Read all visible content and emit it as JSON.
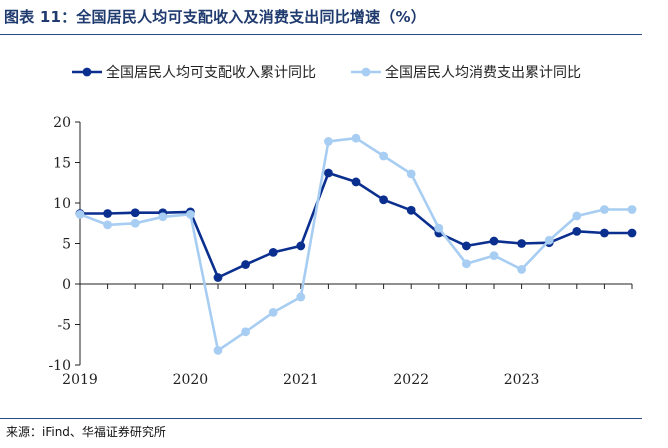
{
  "figure_title": "图表 11：全国居民人均可支配收入及消费支出同比增速（%）",
  "source": "来源：iFind、华福证券研究所",
  "colors": {
    "accent": "#1f3a6e",
    "series_dark": "#0a2f8f",
    "series_light": "#a7cdf2",
    "axis": "#222222"
  },
  "chart_data": {
    "type": "line",
    "title": "",
    "xlabel": "",
    "ylabel": "",
    "ylim": [
      -10,
      20
    ],
    "yticks": [
      -10,
      -5,
      0,
      5,
      10,
      15,
      20
    ],
    "xlim": [
      2019.0,
      2024.0
    ],
    "xticks": [
      2019,
      2020,
      2021,
      2022,
      2023
    ],
    "legend_position": "top",
    "grid": false,
    "series": [
      {
        "name": "全国居民人均可支配收入累计同比",
        "color": "#0a2f8f",
        "x": [
          2019.0,
          2019.25,
          2019.5,
          2019.75,
          2020.0,
          2020.25,
          2020.5,
          2020.75,
          2021.0,
          2021.25,
          2021.5,
          2021.75,
          2022.0,
          2022.25,
          2022.5,
          2022.75,
          2023.0,
          2023.25,
          2023.5,
          2023.75,
          2024.0
        ],
        "values": [
          8.7,
          8.7,
          8.8,
          8.8,
          8.9,
          0.8,
          2.4,
          3.9,
          4.7,
          13.7,
          12.6,
          10.4,
          9.1,
          6.3,
          4.7,
          5.3,
          5.0,
          5.1,
          6.5,
          6.3,
          6.3
        ]
      },
      {
        "name": "全国居民人均消费支出累计同比",
        "color": "#a7cdf2",
        "x": [
          2019.0,
          2019.25,
          2019.5,
          2019.75,
          2020.0,
          2020.25,
          2020.5,
          2020.75,
          2021.0,
          2021.25,
          2021.5,
          2021.75,
          2022.0,
          2022.25,
          2022.5,
          2022.75,
          2023.0,
          2023.25,
          2023.5,
          2023.75,
          2024.0
        ],
        "values": [
          8.6,
          7.3,
          7.5,
          8.3,
          8.6,
          -8.2,
          -5.9,
          -3.5,
          -1.6,
          17.6,
          18.0,
          15.8,
          13.6,
          6.9,
          2.5,
          3.5,
          1.8,
          5.4,
          8.4,
          9.2,
          9.2
        ]
      }
    ]
  }
}
